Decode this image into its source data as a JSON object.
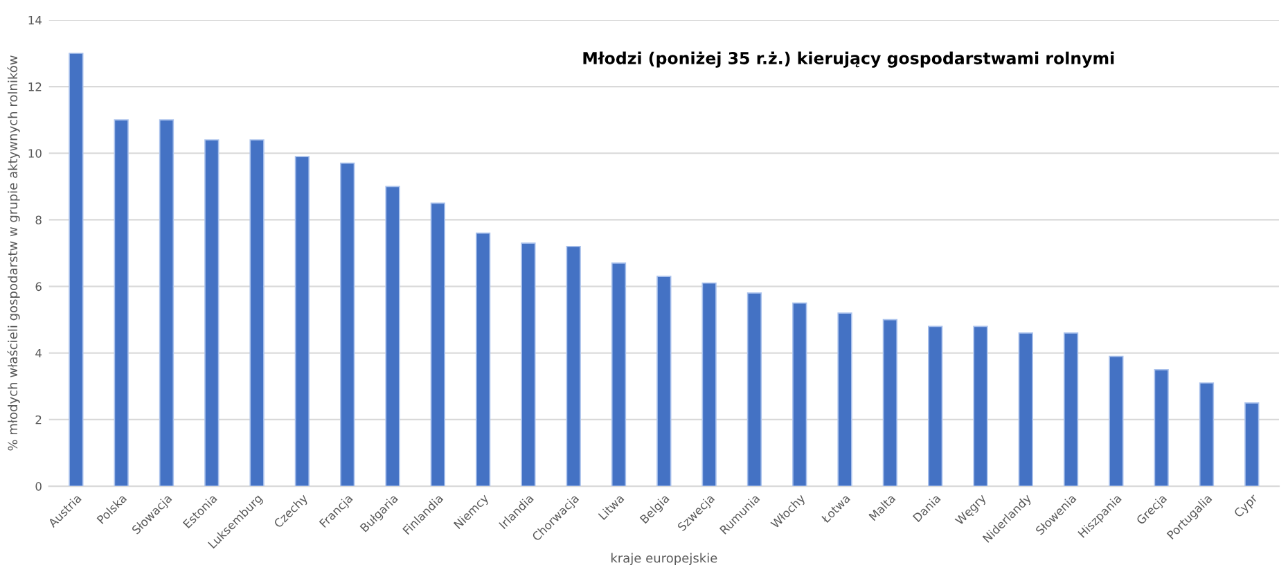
{
  "chart_data": {
    "type": "bar",
    "title": "Młodzi (poniżej 35 r.ż.) kierujący gospodarstwami rolnymi",
    "xlabel": "kraje europejskie",
    "ylabel": "% młodych właścieli gospodarstw w grupie aktywnych rolników",
    "categories": [
      "Austria",
      "Polska",
      "Słowacja",
      "Estonia",
      "Luksemburg",
      "Czechy",
      "Francja",
      "Bułgaria",
      "Finlandia",
      "Niemcy",
      "Irlandia",
      "Chorwacja",
      "Litwa",
      "Belgia",
      "Szwecja",
      "Rumunia",
      "Włochy",
      "Łotwa",
      "Malta",
      "Dania",
      "Węgry",
      "Niderlandy",
      "Słowenia",
      "Hiszpania",
      "Grecja",
      "Portugalia",
      "Cypr"
    ],
    "values": [
      13,
      11,
      11,
      10.4,
      10.4,
      9.9,
      9.7,
      9.0,
      8.5,
      7.6,
      7.3,
      7.2,
      6.7,
      6.3,
      6.1,
      5.8,
      5.5,
      5.2,
      5.0,
      4.8,
      4.8,
      4.6,
      4.6,
      3.9,
      3.5,
      3.1,
      2.5
    ],
    "color": "#4472c4",
    "ylim": [
      0,
      14
    ],
    "yticks": [
      0,
      2,
      4,
      6,
      8,
      10,
      12,
      14
    ],
    "grid": "y",
    "legend": false
  }
}
